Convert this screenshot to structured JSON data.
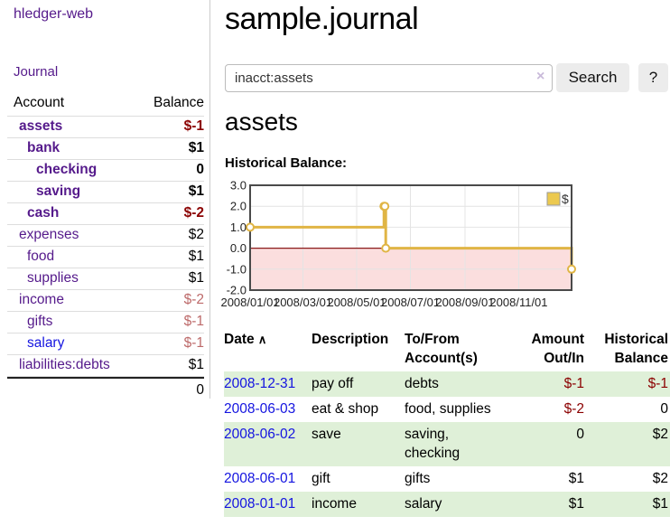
{
  "app": {
    "title": "hledger-web"
  },
  "sidebar": {
    "journal_link": "Journal",
    "accounts_header": {
      "account": "Account",
      "balance": "Balance"
    },
    "accounts": [
      {
        "name": "assets",
        "depth": 1,
        "bold": true,
        "balance": "$-1"
      },
      {
        "name": "bank",
        "depth": 2,
        "bold": true,
        "balance": "$1"
      },
      {
        "name": "checking",
        "depth": 3,
        "bold": true,
        "balance": "0"
      },
      {
        "name": "saving",
        "depth": 3,
        "bold": true,
        "balance": "$1"
      },
      {
        "name": "cash",
        "depth": 2,
        "bold": true,
        "balance": "$-2"
      },
      {
        "name": "expenses",
        "depth": 1,
        "bold": false,
        "balance": "$2"
      },
      {
        "name": "food",
        "depth": 2,
        "bold": false,
        "balance": "$1"
      },
      {
        "name": "supplies",
        "depth": 2,
        "bold": false,
        "balance": "$1"
      },
      {
        "name": "income",
        "depth": 1,
        "bold": false,
        "balance": "$-2"
      },
      {
        "name": "gifts",
        "depth": 2,
        "bold": false,
        "balance": "$-1"
      },
      {
        "name": "salary",
        "depth": 2,
        "bold": false,
        "balance": "$-1",
        "blue": true
      },
      {
        "name": "liabilities:debts",
        "depth": 1,
        "bold": false,
        "balance": "$1"
      }
    ],
    "total": "0"
  },
  "header": {
    "title": "sample.journal"
  },
  "search": {
    "value": "inacct:assets",
    "clear_icon": "×",
    "button": "Search",
    "help_button": "?"
  },
  "account_page": {
    "title": "assets",
    "section_label": "Historical Balance:"
  },
  "chart_data": {
    "type": "line",
    "title": "Historical Balance:",
    "legend": "$",
    "legend_position": "top-right",
    "grid": true,
    "step": true,
    "xlim": [
      "2008-01-01",
      "2008-12-31"
    ],
    "ylim": [
      -2,
      3
    ],
    "y_ticks": [
      "3.0",
      "2.0",
      "1.0",
      "0.0",
      "-1.0",
      "-2.0"
    ],
    "x_ticks": [
      "2008/01/01",
      "2008/03/01",
      "2008/05/01",
      "2008/07/01",
      "2008/09/01",
      "2008/11/01"
    ],
    "series": [
      {
        "name": "$",
        "points": [
          [
            "2008-01-01",
            1
          ],
          [
            "2008-06-01",
            2
          ],
          [
            "2008-06-02",
            2
          ],
          [
            "2008-06-03",
            0
          ],
          [
            "2008-12-31",
            -1
          ]
        ]
      }
    ],
    "line_color": "#e0b545",
    "marker_fill": "#ffffff",
    "negative_region_color": "#fbdede",
    "zero_line_color": "#8b1a1a",
    "border_color": "#4a4a4a",
    "grid_color": "#e4e4e4",
    "legend_swatch_color": "#ecc94f"
  },
  "register": {
    "columns": [
      "Date",
      "Description",
      "To/From Account(s)",
      "Amount Out/In",
      "Historical Balance"
    ],
    "sort_icon": "∧",
    "rows": [
      {
        "date": "2008-12-31",
        "description": "pay off",
        "accounts": "debts",
        "amount": "$-1",
        "balance": "$-1"
      },
      {
        "date": "2008-06-03",
        "description": "eat & shop",
        "accounts": "food, supplies",
        "amount": "$-2",
        "balance": "0"
      },
      {
        "date": "2008-06-02",
        "description": "save",
        "accounts": "saving, checking",
        "amount": "0",
        "balance": "$2"
      },
      {
        "date": "2008-06-01",
        "description": "gift",
        "accounts": "gifts",
        "amount": "$1",
        "balance": "$2"
      },
      {
        "date": "2008-01-01",
        "description": "income",
        "accounts": "salary",
        "amount": "$1",
        "balance": "$1"
      }
    ]
  },
  "colors": {
    "link_purple": "#551a8b",
    "link_blue": "#1414e0",
    "negative_dark": "#8b0000",
    "negative_muted": "#bd6a6a",
    "row_stripe_green": "#dff0d8"
  }
}
